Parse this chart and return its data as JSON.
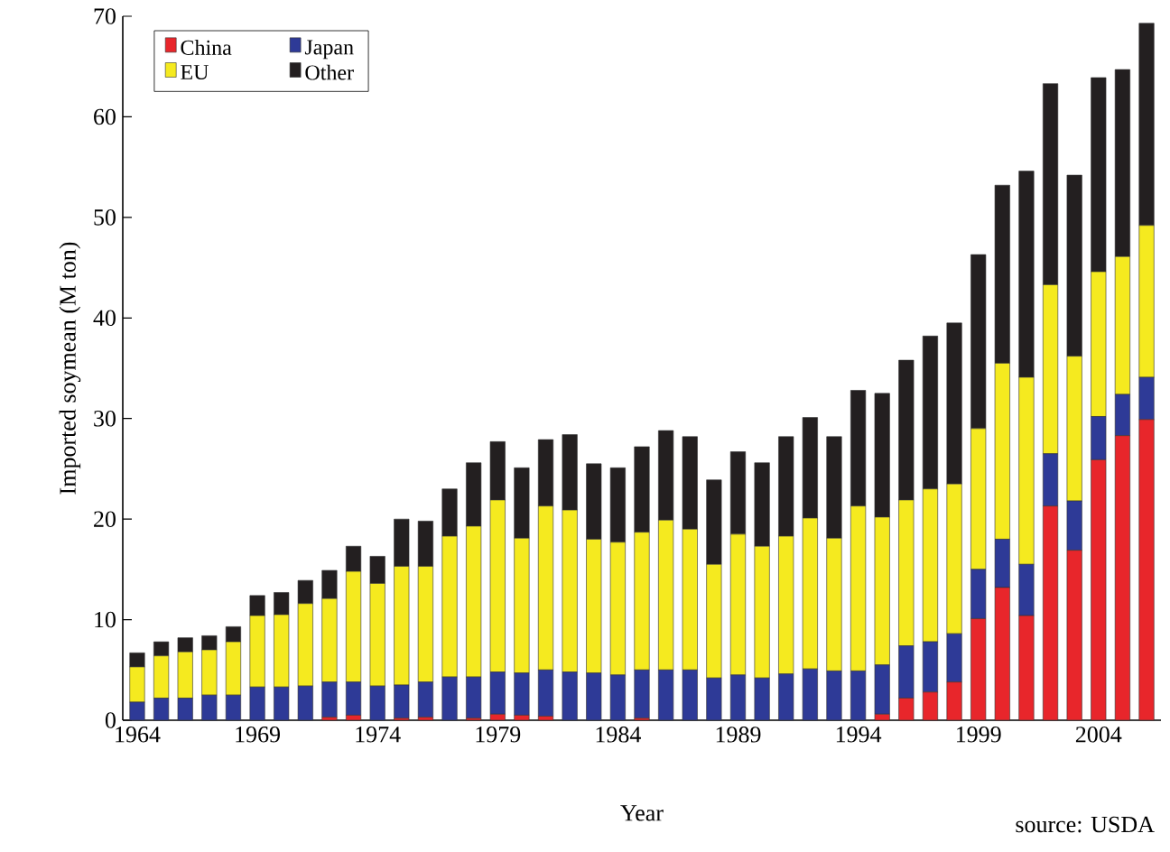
{
  "chart_data": {
    "type": "bar",
    "stacked": true,
    "xlabel": "Year",
    "ylabel": "Imported soymean (M ton)",
    "annotations": [
      "source: USDA"
    ],
    "x": [
      1964,
      1965,
      1966,
      1967,
      1968,
      1969,
      1970,
      1971,
      1972,
      1973,
      1974,
      1975,
      1976,
      1977,
      1978,
      1979,
      1980,
      1981,
      1982,
      1983,
      1984,
      1985,
      1986,
      1987,
      1988,
      1989,
      1990,
      1991,
      1992,
      1993,
      1994,
      1995,
      1996,
      1997,
      1998,
      1999,
      2000,
      2001,
      2002,
      2003,
      2004,
      2005,
      2006
    ],
    "xlim": [
      1963.4,
      2006.6
    ],
    "xticks": [
      1964,
      1969,
      1974,
      1979,
      1984,
      1989,
      1994,
      1999,
      2004
    ],
    "ylim": [
      0,
      70
    ],
    "yticks": [
      0,
      10,
      20,
      30,
      40,
      50,
      60,
      70
    ],
    "legend": "top left",
    "series": [
      {
        "name": "China",
        "color": "#e8262b",
        "values": [
          0,
          0,
          0,
          0,
          0,
          0,
          0,
          0,
          0.3,
          0.5,
          0,
          0.2,
          0.3,
          0,
          0.2,
          0.6,
          0.5,
          0.4,
          0,
          0,
          0,
          0.2,
          0,
          0,
          0,
          0,
          0,
          0,
          0,
          0,
          0,
          0.6,
          2.2,
          2.8,
          3.8,
          10.1,
          13.2,
          10.4,
          21.3,
          16.9,
          25.9,
          28.3,
          29.9
        ]
      },
      {
        "name": "Japan",
        "color": "#2e3a97",
        "values": [
          1.8,
          2.2,
          2.2,
          2.5,
          2.5,
          3.3,
          3.3,
          3.4,
          3.5,
          3.3,
          3.4,
          3.3,
          3.5,
          4.3,
          4.1,
          4.2,
          4.2,
          4.6,
          4.8,
          4.7,
          4.5,
          4.8,
          5.0,
          5.0,
          4.2,
          4.5,
          4.2,
          4.6,
          5.1,
          4.9,
          4.9,
          4.9,
          5.2,
          5.0,
          4.8,
          4.9,
          4.8,
          5.1,
          5.2,
          4.9,
          4.3,
          4.1,
          4.2
        ]
      },
      {
        "name": "EU",
        "color": "#f5ea1f",
        "values": [
          3.5,
          4.2,
          4.6,
          4.5,
          5.3,
          7.1,
          7.2,
          8.2,
          8.3,
          11.0,
          10.2,
          11.8,
          11.5,
          14.0,
          15.0,
          17.1,
          13.4,
          16.3,
          16.1,
          13.3,
          13.2,
          13.7,
          14.9,
          14.0,
          11.3,
          14.0,
          13.1,
          13.7,
          15.0,
          13.2,
          16.4,
          14.7,
          14.5,
          15.2,
          14.9,
          14.0,
          17.5,
          18.6,
          16.8,
          14.4,
          14.4,
          13.7,
          15.1
        ]
      },
      {
        "name": "Other",
        "color": "#231f20",
        "values": [
          1.4,
          1.4,
          1.4,
          1.4,
          1.5,
          2.0,
          2.2,
          2.3,
          2.8,
          2.5,
          2.7,
          4.7,
          4.5,
          4.7,
          6.3,
          5.8,
          7.0,
          6.6,
          7.5,
          7.5,
          7.4,
          8.5,
          8.9,
          9.2,
          8.4,
          8.2,
          8.3,
          9.9,
          10.0,
          10.1,
          11.5,
          12.3,
          13.9,
          15.2,
          16.0,
          17.3,
          17.7,
          20.5,
          20.0,
          18.0,
          19.3,
          18.6,
          20.1
        ]
      }
    ]
  }
}
